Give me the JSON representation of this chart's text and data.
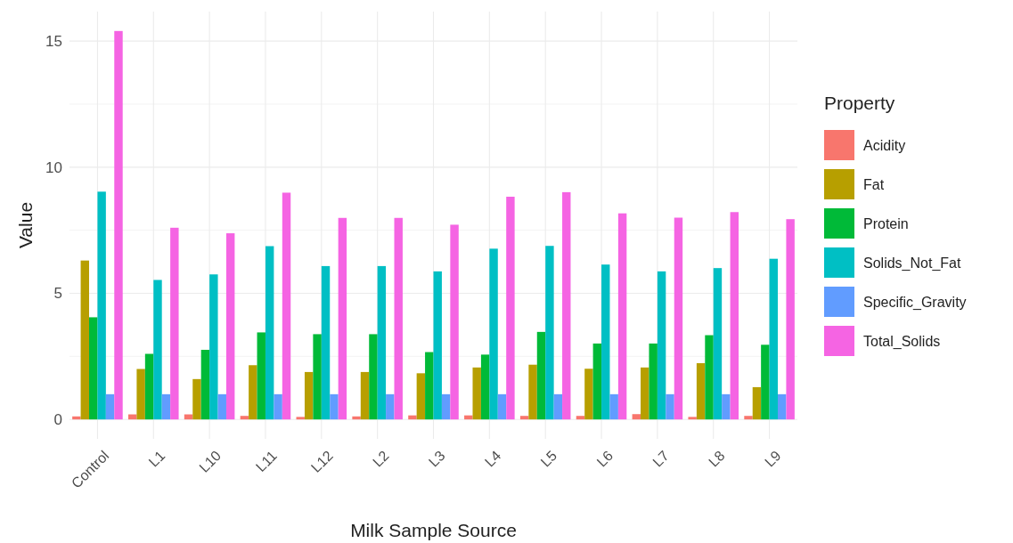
{
  "chart_data": {
    "type": "bar",
    "xlabel": "Milk Sample Source",
    "ylabel": "Value",
    "legend_title": "Property",
    "categories": [
      "Control",
      "L1",
      "L10",
      "L11",
      "L12",
      "L2",
      "L3",
      "L4",
      "L5",
      "L6",
      "L7",
      "L8",
      "L9"
    ],
    "series": [
      {
        "name": "Acidity",
        "color": "#f8766d",
        "values": [
          0.12,
          0.2,
          0.2,
          0.14,
          0.1,
          0.12,
          0.16,
          0.16,
          0.14,
          0.14,
          0.21,
          0.1,
          0.14
        ]
      },
      {
        "name": "Fat",
        "color": "#b79f00",
        "values": [
          6.3,
          2.0,
          1.6,
          2.15,
          1.88,
          1.88,
          1.83,
          2.06,
          2.17,
          2.01,
          2.06,
          2.23,
          1.28
        ]
      },
      {
        "name": "Protein",
        "color": "#00ba38",
        "values": [
          4.05,
          2.6,
          2.76,
          3.45,
          3.38,
          3.38,
          2.67,
          2.57,
          3.47,
          3.01,
          3.01,
          3.34,
          2.96
        ]
      },
      {
        "name": "Solids_Not_Fat",
        "color": "#00bfc4",
        "values": [
          9.03,
          5.53,
          5.75,
          6.87,
          6.08,
          6.08,
          5.87,
          6.77,
          6.88,
          6.14,
          5.87,
          6.0,
          6.37
        ]
      },
      {
        "name": "Specific_Gravity",
        "color": "#619cff",
        "values": [
          1.0,
          1.0,
          1.0,
          1.0,
          1.0,
          1.0,
          1.0,
          1.0,
          1.0,
          1.0,
          1.0,
          1.0,
          1.0
        ]
      },
      {
        "name": "Total_Solids",
        "color": "#f564e3",
        "values": [
          15.4,
          7.6,
          7.38,
          8.99,
          7.99,
          7.99,
          7.72,
          8.83,
          9.01,
          8.17,
          8.0,
          8.22,
          7.94
        ]
      }
    ],
    "ylim": [
      -0.77,
      16.17
    ],
    "yticks": [
      0,
      {
        "value": 2.5,
        "label": null
      },
      5,
      {
        "value": 7.5,
        "label": null
      },
      10,
      {
        "value": 12.5,
        "label": null
      },
      15
    ],
    "grid": true,
    "legend": "right"
  }
}
